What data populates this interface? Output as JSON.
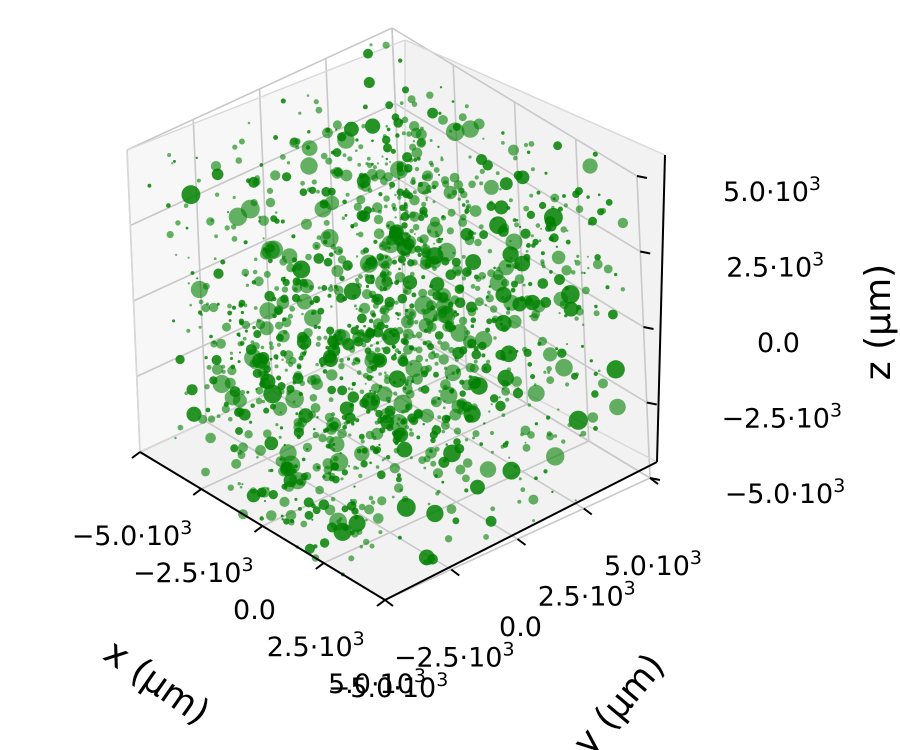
{
  "chart_data": {
    "type": "scatter",
    "projection": "3d",
    "marker_color": "#008000",
    "pane_color": "#f2f2f2",
    "grid": true,
    "x_axis": {
      "label": "x (μm)",
      "range": [
        -5000,
        5000
      ],
      "ticks": [
        {
          "value": -5000,
          "mantissa": "−5.0",
          "exp": "3"
        },
        {
          "value": -2500,
          "mantissa": "−2.5",
          "exp": "3"
        },
        {
          "value": 0,
          "mantissa": "0.0",
          "exp": ""
        },
        {
          "value": 2500,
          "mantissa": "2.5",
          "exp": "3"
        },
        {
          "value": 5000,
          "mantissa": "5.0",
          "exp": "3"
        }
      ]
    },
    "y_axis": {
      "label": "y (μm)",
      "range": [
        -5000,
        5000
      ],
      "ticks": [
        {
          "value": -5000,
          "mantissa": "−5.0",
          "exp": "3"
        },
        {
          "value": -2500,
          "mantissa": "−2.5",
          "exp": "3"
        },
        {
          "value": 0,
          "mantissa": "0.0",
          "exp": ""
        },
        {
          "value": 2500,
          "mantissa": "2.5",
          "exp": "3"
        },
        {
          "value": 5000,
          "mantissa": "5.0",
          "exp": "3"
        }
      ]
    },
    "z_axis": {
      "label": "z (μm)",
      "range": [
        -5000,
        5000
      ],
      "ticks": [
        {
          "value": -5000,
          "mantissa": "−5.0",
          "exp": "3"
        },
        {
          "value": -2500,
          "mantissa": "−2.5",
          "exp": "3"
        },
        {
          "value": 0,
          "mantissa": "0.0",
          "exp": ""
        },
        {
          "value": 2500,
          "mantissa": "2.5",
          "exp": "3"
        },
        {
          "value": 5000,
          "mantissa": "5.0",
          "exp": "3"
        }
      ]
    },
    "point_count": 2200,
    "distribution": "uniform within cube, with denser clusters",
    "clusters": [
      {
        "x": -1000,
        "y": 1500,
        "z": 3500
      },
      {
        "x": 0,
        "y": 0,
        "z": 0
      },
      {
        "x": -3500,
        "y": -1500,
        "z": -2500
      },
      {
        "x": 3000,
        "y": -3000,
        "z": -1000
      },
      {
        "x": 2500,
        "y": 3000,
        "z": 2000
      },
      {
        "x": -3000,
        "y": 3500,
        "z": -500
      },
      {
        "x": 500,
        "y": -4000,
        "z": -4000
      },
      {
        "x": 1500,
        "y": 1000,
        "z": -2500
      }
    ]
  }
}
